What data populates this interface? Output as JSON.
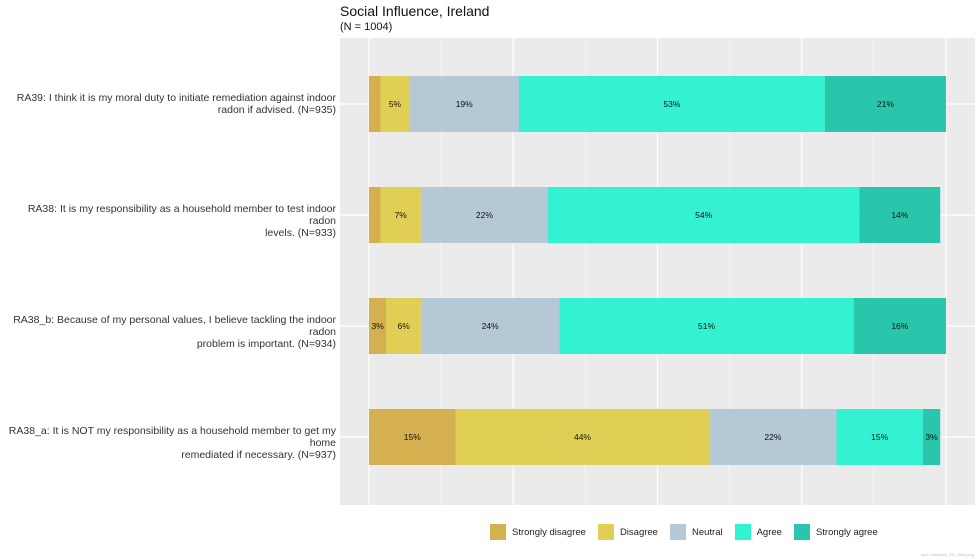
{
  "chart_data": {
    "type": "bar",
    "orientation": "horizontal",
    "stacked": true,
    "title": "Social Influence, Ireland",
    "subtitle": "(N = 1004)",
    "xlabel": "",
    "ylabel": "",
    "xlim": [
      0,
      100
    ],
    "grid": true,
    "legend_position": "bottom",
    "categories": [
      [
        "RA39: I think it is my moral duty to initiate remediation against indoor",
        "radon if advised. (N=935)"
      ],
      [
        "RA38: It is my responsibility as a household member to test indoor radon",
        "levels. (N=933)"
      ],
      [
        "RA38_b: Because of my personal values, I believe tackling the indoor radon",
        "problem is important. (N=934)"
      ],
      [
        "RA38_a: It is NOT my responsibility as a household member to get my home",
        "remediated if necessary. (N=937)"
      ]
    ],
    "series": [
      {
        "name": "Strongly disagree",
        "color": "#D4B04E",
        "values": [
          2,
          2,
          3,
          15
        ],
        "labels": [
          "",
          "",
          "3%",
          "15%"
        ]
      },
      {
        "name": "Disagree",
        "color": "#E1CF55",
        "values": [
          5,
          7,
          6,
          44
        ],
        "labels": [
          "5%",
          "7%",
          "6%",
          "44%"
        ]
      },
      {
        "name": "Neutral",
        "color": "#B4C8D6",
        "values": [
          19,
          22,
          24,
          22
        ],
        "labels": [
          "19%",
          "22%",
          "24%",
          "22%"
        ]
      },
      {
        "name": "Agree",
        "color": "#33F2D2",
        "values": [
          53,
          54,
          51,
          15
        ],
        "labels": [
          "53%",
          "54%",
          "51%",
          "15%"
        ]
      },
      {
        "name": "Strongly agree",
        "color": "#29C6AC",
        "values": [
          21,
          14,
          16,
          3
        ],
        "labels": [
          "21%",
          "14%",
          "16%",
          "3%"
        ]
      }
    ]
  },
  "caption": "scot_influence_IRL_03x1.png"
}
